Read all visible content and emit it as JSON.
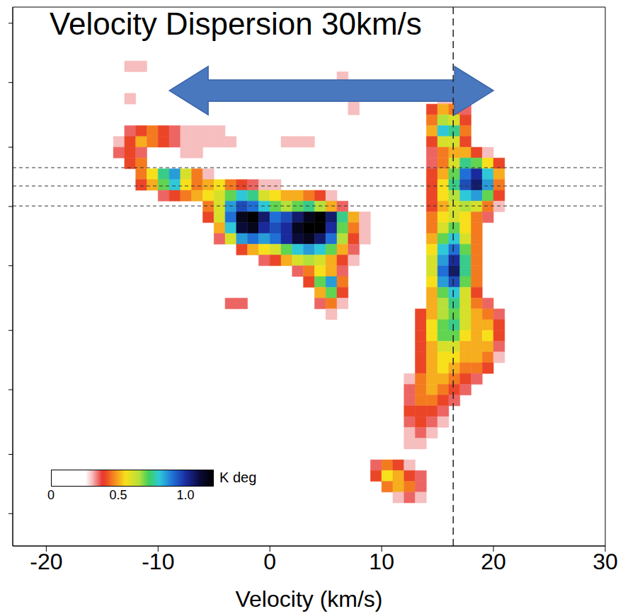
{
  "chart_data": {
    "type": "heatmap",
    "title": "Velocity Dispersion 30km/s",
    "xlabel": "Velocity (km/s)",
    "xlim": [
      -23,
      30
    ],
    "xticks": [
      -20,
      -10,
      0,
      10,
      20,
      30
    ],
    "ylim": [
      0,
      100
    ],
    "yticks": [
      6,
      17,
      29,
      40,
      52,
      63,
      74,
      86,
      97
    ],
    "tick_labels": "x",
    "grid": false,
    "x_step": 1,
    "y_step": 2,
    "cells": [
      {
        "y": 88,
        "x": -13,
        "values": [
          0.3,
          0.3
        ]
      },
      {
        "y": 86,
        "x": 6,
        "values": [
          0.3
        ]
      },
      {
        "y": 84,
        "x": 6,
        "values": [
          0.35
        ]
      },
      {
        "y": 82,
        "x": 7,
        "values": [
          0.3
        ]
      },
      {
        "y": 80,
        "x": 7,
        "values": [
          0.3
        ]
      },
      {
        "y": 82,
        "x": -13,
        "values": [
          0.3
        ]
      },
      {
        "y": 76,
        "x": -13,
        "values": [
          0.35,
          0.4,
          0.45,
          0.4,
          0.35,
          0.3,
          0.3,
          0.3,
          0.3
        ]
      },
      {
        "y": 74,
        "x": -14,
        "values": [
          0.3,
          0.4,
          0.5,
          0.45,
          0.4,
          0.35,
          0.3,
          0.3,
          0.3,
          0.3,
          0.3
        ]
      },
      {
        "y": 74,
        "x": 1,
        "values": [
          0.3,
          0.3,
          0.3
        ]
      },
      {
        "y": 72,
        "x": -14,
        "values": [
          0.35,
          0.4,
          0.35
        ]
      },
      {
        "y": 72,
        "x": -8,
        "values": [
          0.3,
          0.3
        ]
      },
      {
        "y": 70,
        "x": -13,
        "values": [
          0.4,
          0.45
        ]
      },
      {
        "y": 68,
        "x": -12,
        "values": [
          0.45,
          0.55,
          0.75,
          0.85,
          0.6,
          0.45,
          0.3
        ]
      },
      {
        "y": 66,
        "x": -12,
        "values": [
          0.4,
          0.5,
          0.7,
          0.8,
          0.55,
          0.45,
          0.5,
          0.55,
          0.45,
          0.4,
          0.35,
          0.3,
          0.3
        ]
      },
      {
        "y": 64,
        "x": -10,
        "values": [
          0.35,
          0.4,
          0.45,
          0.5,
          0.55,
          0.6,
          0.7,
          0.8,
          0.75,
          0.6,
          0.55,
          0.5,
          0.5,
          0.45,
          0.4,
          0.3
        ]
      },
      {
        "y": 62,
        "x": -6,
        "values": [
          0.45,
          0.6,
          0.85,
          0.95,
          0.9,
          0.8,
          0.7,
          0.65,
          0.7,
          0.75,
          0.65,
          0.5,
          0.35
        ]
      },
      {
        "y": 60,
        "x": -6,
        "values": [
          0.4,
          0.6,
          0.9,
          1.15,
          1.2,
          1.05,
          0.9,
          0.95,
          1.05,
          1.15,
          1.2,
          1.05,
          0.75,
          0.5,
          0.3
        ]
      },
      {
        "y": 58,
        "x": -5,
        "values": [
          0.5,
          0.8,
          1.1,
          1.15,
          1.0,
          0.95,
          1.0,
          1.15,
          1.2,
          1.2,
          1.0,
          0.7,
          0.45,
          0.3
        ]
      },
      {
        "y": 56,
        "x": -5,
        "values": [
          0.35,
          0.6,
          0.85,
          0.9,
          0.85,
          0.9,
          1.0,
          1.1,
          1.15,
          1.05,
          0.9,
          0.65,
          0.4,
          0.3
        ]
      },
      {
        "y": 54,
        "x": -3,
        "values": [
          0.4,
          0.5,
          0.55,
          0.6,
          0.7,
          0.8,
          0.85,
          0.8,
          0.7,
          0.5,
          0.35
        ]
      },
      {
        "y": 52,
        "x": -1,
        "values": [
          0.35,
          0.4,
          0.5,
          0.6,
          0.65,
          0.6,
          0.5,
          0.4,
          0.3
        ]
      },
      {
        "y": 50,
        "x": 2,
        "values": [
          0.35,
          0.45,
          0.55,
          0.5,
          0.35
        ]
      },
      {
        "y": 48,
        "x": 3,
        "values": [
          0.4,
          0.7,
          0.85,
          0.45
        ]
      },
      {
        "y": 46,
        "x": 4,
        "values": [
          0.5,
          0.7,
          0.4
        ]
      },
      {
        "y": 44,
        "x": -4,
        "values": [
          0.35,
          0.35
        ]
      },
      {
        "y": 44,
        "x": 4,
        "values": [
          0.35,
          0.45,
          0.3
        ]
      },
      {
        "y": 42,
        "x": 5,
        "values": [
          0.3
        ]
      },
      {
        "y": 82,
        "x": 15,
        "values": [
          0.3,
          0.3
        ]
      },
      {
        "y": 80,
        "x": 14,
        "values": [
          0.4,
          0.5,
          0.45,
          0.35
        ]
      },
      {
        "y": 78,
        "x": 14,
        "values": [
          0.45,
          0.65,
          0.6,
          0.4
        ]
      },
      {
        "y": 76,
        "x": 14,
        "values": [
          0.5,
          0.8,
          0.75,
          0.45
        ]
      },
      {
        "y": 74,
        "x": 14,
        "values": [
          0.4,
          0.6,
          0.6,
          0.4
        ]
      },
      {
        "y": 72,
        "x": 14,
        "values": [
          0.35,
          0.45,
          0.5,
          0.5,
          0.4,
          0.3
        ]
      },
      {
        "y": 70,
        "x": 14,
        "values": [
          0.35,
          0.45,
          0.6,
          0.75,
          0.7,
          0.55,
          0.4
        ]
      },
      {
        "y": 68,
        "x": 14,
        "values": [
          0.4,
          0.5,
          0.7,
          0.9,
          1.0,
          0.8,
          0.5
        ]
      },
      {
        "y": 66,
        "x": 14,
        "values": [
          0.4,
          0.55,
          0.75,
          0.95,
          1.05,
          0.85,
          0.45
        ]
      },
      {
        "y": 64,
        "x": 14,
        "values": [
          0.4,
          0.55,
          0.65,
          0.8,
          0.85,
          0.7,
          0.4
        ]
      },
      {
        "y": 62,
        "x": 14,
        "values": [
          0.4,
          0.5,
          0.6,
          0.65,
          0.6,
          0.45,
          0.3
        ]
      },
      {
        "y": 60,
        "x": 14,
        "values": [
          0.45,
          0.55,
          0.6,
          0.55,
          0.45,
          0.35
        ]
      },
      {
        "y": 58,
        "x": 14,
        "values": [
          0.45,
          0.6,
          0.7,
          0.55,
          0.45
        ]
      },
      {
        "y": 56,
        "x": 14,
        "values": [
          0.5,
          0.7,
          0.8,
          0.6,
          0.45
        ]
      },
      {
        "y": 54,
        "x": 14,
        "values": [
          0.55,
          0.8,
          0.9,
          0.7,
          0.45
        ]
      },
      {
        "y": 52,
        "x": 14,
        "values": [
          0.6,
          0.85,
          1.0,
          0.75,
          0.45
        ]
      },
      {
        "y": 50,
        "x": 14,
        "values": [
          0.6,
          0.9,
          1.05,
          0.75,
          0.45
        ]
      },
      {
        "y": 48,
        "x": 14,
        "values": [
          0.55,
          0.85,
          0.95,
          0.7,
          0.45
        ]
      },
      {
        "y": 46,
        "x": 14,
        "values": [
          0.5,
          0.7,
          0.8,
          0.6,
          0.4
        ]
      },
      {
        "y": 44,
        "x": 14,
        "values": [
          0.5,
          0.65,
          0.75,
          0.6,
          0.45,
          0.35
        ]
      },
      {
        "y": 42,
        "x": 13,
        "values": [
          0.4,
          0.5,
          0.65,
          0.7,
          0.6,
          0.5,
          0.45,
          0.35
        ]
      },
      {
        "y": 40,
        "x": 13,
        "values": [
          0.4,
          0.55,
          0.7,
          0.75,
          0.6,
          0.5,
          0.5,
          0.4
        ]
      },
      {
        "y": 38,
        "x": 13,
        "values": [
          0.4,
          0.55,
          0.7,
          0.7,
          0.55,
          0.5,
          0.55,
          0.4
        ]
      },
      {
        "y": 36,
        "x": 13,
        "values": [
          0.4,
          0.5,
          0.6,
          0.6,
          0.5,
          0.5,
          0.5,
          0.35
        ]
      },
      {
        "y": 34,
        "x": 13,
        "values": [
          0.4,
          0.5,
          0.55,
          0.55,
          0.5,
          0.5,
          0.45,
          0.3
        ]
      },
      {
        "y": 32,
        "x": 13,
        "values": [
          0.4,
          0.5,
          0.55,
          0.5,
          0.45,
          0.45,
          0.4
        ]
      },
      {
        "y": 30,
        "x": 12,
        "values": [
          0.3,
          0.45,
          0.5,
          0.5,
          0.45,
          0.4,
          0.35
        ]
      },
      {
        "y": 28,
        "x": 12,
        "values": [
          0.35,
          0.45,
          0.5,
          0.45,
          0.4,
          0.35
        ]
      },
      {
        "y": 26,
        "x": 12,
        "values": [
          0.35,
          0.45,
          0.45,
          0.4,
          0.35
        ]
      },
      {
        "y": 24,
        "x": 12,
        "values": [
          0.4,
          0.4,
          0.4,
          0.35
        ]
      },
      {
        "y": 22,
        "x": 12,
        "values": [
          0.35,
          0.4,
          0.35,
          0.3
        ]
      },
      {
        "y": 20,
        "x": 12,
        "values": [
          0.3,
          0.35,
          0.3
        ]
      },
      {
        "y": 18,
        "x": 12,
        "values": [
          0.3,
          0.3
        ]
      },
      {
        "y": 14,
        "x": 9,
        "values": [
          0.35,
          0.45,
          0.4,
          0.3
        ]
      },
      {
        "y": 12,
        "x": 9,
        "values": [
          0.4,
          0.55,
          0.5,
          0.4,
          0.35
        ]
      },
      {
        "y": 10,
        "x": 10,
        "values": [
          0.45,
          0.5,
          0.45,
          0.35
        ]
      },
      {
        "y": 8,
        "x": 11,
        "values": [
          0.3,
          0.35,
          0.3
        ]
      }
    ],
    "colorbar": {
      "label": "K deg",
      "range": [
        0,
        1.2
      ],
      "ticks": [
        0,
        0.5,
        {
          "value": 1,
          "label": "1.0"
        }
      ]
    },
    "reference_lines": {
      "x": [
        16.4
      ],
      "y": [
        63.1,
        66.8,
        70.2
      ]
    },
    "dispersion_arrow": {
      "x": [
        -9,
        20
      ],
      "y": [
        80,
        89
      ]
    }
  }
}
